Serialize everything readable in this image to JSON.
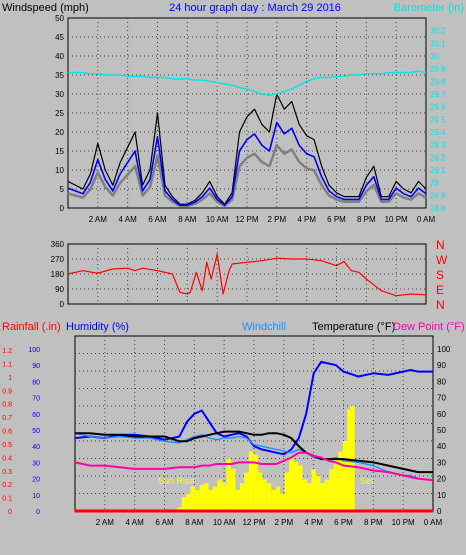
{
  "colors": {
    "plot_bg": "#c0c0c0",
    "frame": "#000000",
    "grid": "#404040",
    "windspeed": "#000000",
    "windgust_shadow": "#808080",
    "wind_avg": "#0000ff",
    "barometer": "#00e5e5",
    "direction": "#ff0000",
    "humidity": "#0000ff",
    "windchill": "#1e90ff",
    "temperature": "#000000",
    "dewpoint": "#ff00aa",
    "rainfall": "#ff0000",
    "solar": "#ffff00",
    "title_blue": "#0000ff",
    "sun_text": "#ffff00"
  },
  "time_ticks": [
    "2 AM",
    "4 AM",
    "6 AM",
    "8 AM",
    "10 AM",
    "12 PM",
    "2 PM",
    "4 PM",
    "6 PM",
    "8 PM",
    "10 PM",
    "0 AM"
  ],
  "chart_data": [
    {
      "type": "line",
      "title": "24 hour graph day : March 29 2016",
      "ylabel_left": "Windspeed (mph)",
      "ylabel_right": "Barometer (in)",
      "y_left_ticks": [
        "0",
        "5",
        "10",
        "15",
        "20",
        "25",
        "30",
        "35",
        "40",
        "45",
        "50"
      ],
      "y_right_ticks": [
        "28.8",
        "28.9",
        "29",
        "29.1",
        "29.2",
        "29.3",
        "29.4",
        "29.5",
        "29.6",
        "29.7",
        "29.8",
        "29.9",
        "30",
        "30.1",
        "30.2"
      ],
      "ylim_left": [
        0,
        50
      ],
      "ylim_right": [
        28.8,
        30.3
      ],
      "x_hours": [
        0,
        1,
        1.5,
        2,
        2.5,
        3,
        3.5,
        4,
        4.5,
        5,
        5.5,
        6,
        6.5,
        7,
        7.5,
        8,
        8.5,
        9,
        9.5,
        10,
        10.5,
        11,
        11.5,
        12,
        12.5,
        13,
        13.5,
        14,
        14.5,
        15,
        15.5,
        16,
        16.5,
        17,
        17.5,
        18,
        18.5,
        19,
        19.5,
        20,
        20.5,
        21,
        21.5,
        22,
        22.5,
        23,
        23.5,
        24
      ],
      "series": [
        {
          "name": "Windspeed (mph)",
          "values": [
            7,
            5,
            9,
            17,
            10,
            6,
            12,
            16,
            20,
            6,
            10,
            25,
            6,
            3,
            1,
            1,
            2,
            4,
            7,
            3,
            1,
            4,
            20,
            24,
            26,
            22,
            20,
            30,
            26,
            28,
            22,
            19,
            18,
            11,
            6,
            4,
            3,
            3,
            3,
            8,
            11,
            3,
            3,
            7,
            5,
            4,
            7,
            5
          ]
        },
        {
          "name": "Barometer (in)",
          "values": [
            29.87,
            29.87,
            29.86,
            29.86,
            29.85,
            29.85,
            29.85,
            29.84,
            29.84,
            29.84,
            29.83,
            29.83,
            29.83,
            29.82,
            29.82,
            29.82,
            29.81,
            29.81,
            29.8,
            29.79,
            29.78,
            29.77,
            29.75,
            29.74,
            29.72,
            29.7,
            29.69,
            29.7,
            29.72,
            29.74,
            29.77,
            29.8,
            29.82,
            29.83,
            29.83,
            29.84,
            29.84,
            29.85,
            29.85,
            29.86,
            29.86,
            29.86,
            29.87,
            29.87,
            29.87,
            29.87,
            29.88,
            29.87
          ]
        }
      ]
    },
    {
      "type": "line",
      "ylabel_right_letters": [
        "N",
        "W",
        "S",
        "E",
        "N"
      ],
      "y_left_ticks": [
        "0",
        "90",
        "180",
        "270",
        "360"
      ],
      "ylim": [
        0,
        360
      ],
      "x_hours": [
        0,
        1,
        2,
        3,
        4,
        4.5,
        5,
        6,
        6.5,
        7,
        7.5,
        8,
        8.2,
        8.6,
        9,
        9.3,
        9.6,
        10,
        10.4,
        10.8,
        11,
        12,
        13,
        14,
        15,
        16,
        16.5,
        17,
        18,
        18.5,
        19,
        19.5,
        20,
        21,
        22,
        23,
        24
      ],
      "series": [
        {
          "name": "Wind Direction",
          "values": [
            180,
            200,
            185,
            210,
            215,
            200,
            215,
            200,
            190,
            180,
            70,
            60,
            70,
            190,
            80,
            250,
            150,
            300,
            60,
            200,
            240,
            250,
            260,
            275,
            270,
            270,
            265,
            260,
            230,
            255,
            200,
            190,
            150,
            80,
            50,
            60,
            55
          ]
        }
      ]
    },
    {
      "type": "line",
      "legend": [
        "Rainfall (.in)",
        "Humidity (%)",
        "Windchill",
        "Temperature (°F)",
        "Dew Point (°F)"
      ],
      "y_rain_ticks": [
        "0",
        "0.1",
        "0.2",
        "0.3",
        "0.4",
        "0.5",
        "0.6",
        "0.7",
        "0.8",
        "0.9",
        "1",
        "1.1",
        "1.2"
      ],
      "y_humidity_ticks": [
        "0",
        "10",
        "20",
        "30",
        "40",
        "50",
        "60",
        "70",
        "80",
        "90",
        "100"
      ],
      "y_temp_ticks": [
        "0",
        "10",
        "20",
        "30",
        "40",
        "50",
        "60",
        "70",
        "80",
        "90",
        "100"
      ],
      "ylim_temp": [
        0,
        108
      ],
      "x_hours": [
        0,
        1,
        2,
        3,
        4,
        5,
        6,
        7,
        7.5,
        8,
        8.5,
        9,
        9.5,
        10,
        10.5,
        11,
        11.5,
        12,
        12.5,
        13,
        13.5,
        14,
        14.5,
        15,
        15.5,
        16,
        16.5,
        17,
        17.5,
        18,
        19,
        20,
        21,
        22,
        22.5,
        23,
        24
      ],
      "series": [
        {
          "name": "Humidity (%)",
          "values": [
            45,
            46,
            45,
            47,
            47,
            46,
            44,
            46,
            55,
            60,
            62,
            55,
            48,
            46,
            47,
            48,
            46,
            40,
            38,
            37,
            36,
            35,
            38,
            45,
            60,
            85,
            92,
            91,
            90,
            86,
            83,
            85,
            84,
            86,
            87,
            86,
            86
          ]
        },
        {
          "name": "Windchill",
          "values": [
            48,
            46,
            45,
            46,
            45,
            45,
            43,
            42,
            44,
            46,
            47,
            45,
            44,
            45,
            45,
            46,
            45,
            41,
            40,
            39,
            38,
            37,
            36,
            38,
            36,
            33,
            32,
            32,
            33,
            31,
            30,
            28,
            24,
            22,
            22,
            20,
            19
          ]
        },
        {
          "name": "Temperature (°F)",
          "values": [
            48,
            48,
            47,
            47,
            46,
            46,
            46,
            43,
            43,
            45,
            46,
            47,
            48,
            49,
            49,
            49,
            48,
            47,
            47,
            48,
            48,
            47,
            45,
            40,
            36,
            34,
            32,
            32,
            32,
            32,
            31,
            30,
            28,
            26,
            25,
            24,
            24
          ]
        },
        {
          "name": "Dew Point (°F)",
          "values": [
            30,
            28,
            28,
            27,
            26,
            26,
            26,
            27,
            27,
            27,
            28,
            28,
            29,
            29,
            29,
            30,
            30,
            30,
            29,
            29,
            29,
            31,
            33,
            36,
            36,
            34,
            33,
            31,
            30,
            28,
            27,
            25,
            24,
            22,
            21,
            20,
            19
          ]
        },
        {
          "name": "Rainfall (.in)",
          "values": [
            0,
            0,
            0,
            0,
            0,
            0,
            0,
            0,
            0,
            0,
            0,
            0,
            0,
            0,
            0,
            0,
            0,
            0,
            0,
            0,
            0,
            0,
            0,
            0,
            0,
            0,
            0,
            0,
            0,
            0,
            0,
            0,
            0,
            0,
            0,
            0,
            0
          ]
        }
      ],
      "solar_x_hours": [
        7.0,
        7.3,
        7.6,
        7.9,
        8.2,
        8.5,
        8.8,
        9.1,
        9.4,
        9.7,
        10.0,
        10.3,
        10.6,
        10.9,
        11.2,
        11.5,
        11.8,
        12.1,
        12.4,
        12.7,
        13.0,
        13.3,
        13.6,
        13.9,
        14.2,
        14.5,
        14.8,
        15.1,
        15.4,
        15.7,
        16.0,
        16.3,
        16.6,
        16.9,
        17.2,
        17.5,
        17.8,
        18.1,
        18.4,
        18.6
      ],
      "solar_values": [
        2,
        8,
        10,
        14,
        12,
        15,
        16,
        12,
        14,
        18,
        16,
        30,
        24,
        12,
        16,
        22,
        34,
        32,
        22,
        18,
        16,
        12,
        14,
        10,
        22,
        30,
        28,
        26,
        18,
        16,
        24,
        20,
        16,
        18,
        24,
        30,
        34,
        40,
        58,
        60
      ],
      "solar_ylim": [
        0,
        100
      ],
      "annotations": {
        "sunrise": "Sun Rise",
        "sunset": "Set"
      }
    }
  ]
}
